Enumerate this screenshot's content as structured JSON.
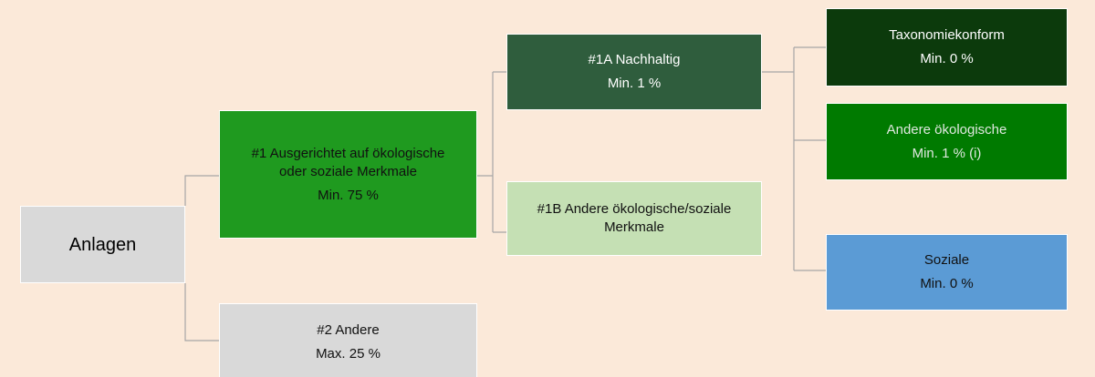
{
  "nodes": [
    {
      "lines": [
        "Anlagen"
      ]
    },
    {
      "lines": [
        "#1 Ausgerichtet auf ökologische",
        "oder soziale Merkmale",
        "Min. 75 %"
      ]
    },
    {
      "lines": [
        "#2 Andere",
        "Max. 25 %"
      ]
    },
    {
      "lines": [
        "#1A Nachhaltig",
        "Min. 1 %"
      ]
    },
    {
      "lines": [
        "#1B Andere ökologische/soziale",
        "Merkmale"
      ]
    },
    {
      "lines": [
        "Taxonomiekonform",
        "Min. 0 %"
      ]
    },
    {
      "lines": [
        "Andere ökologische",
        "Min. 1 % (i)"
      ]
    },
    {
      "lines": [
        "Soziale",
        "Min. 0 %"
      ]
    }
  ]
}
